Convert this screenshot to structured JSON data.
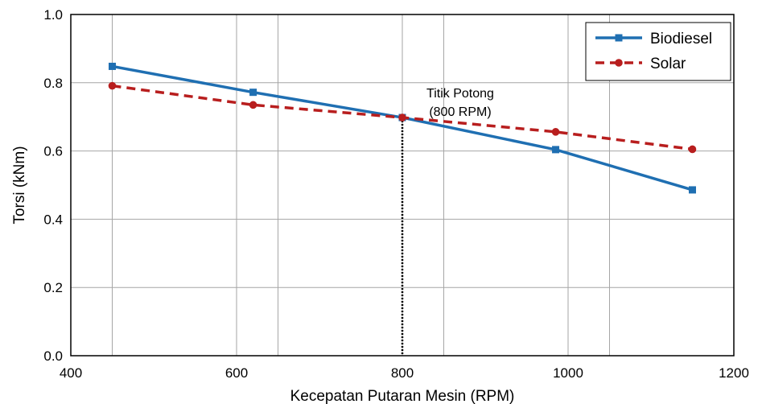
{
  "chart_data": {
    "type": "line",
    "title": "",
    "xlabel": "Kecepatan Putaran Mesin (RPM)",
    "ylabel": "Torsi (kNm)",
    "xlim": [
      400,
      1200
    ],
    "ylim": [
      0.0,
      1.0
    ],
    "xticks": [
      400,
      600,
      800,
      1000,
      1200
    ],
    "xtick_labels": [
      "400",
      "600",
      "800",
      "1000",
      "1200"
    ],
    "yticks": [
      0.0,
      0.2,
      0.4,
      0.6,
      0.8,
      1.0
    ],
    "ytick_labels": [
      "0.0",
      "0.2",
      "0.4",
      "0.6",
      "0.8",
      "1.0"
    ],
    "grid": true,
    "legend_position": "top-right",
    "series": [
      {
        "name": "Biodiesel",
        "color": "#1f6fb2",
        "line_style": "solid",
        "marker": "square",
        "x": [
          450,
          620,
          800,
          985,
          1150
        ],
        "y": [
          0.848,
          0.772,
          0.698,
          0.604,
          0.486
        ]
      },
      {
        "name": "Solar",
        "color": "#b81e1e",
        "line_style": "dashed",
        "marker": "circle",
        "x": [
          450,
          620,
          800,
          985,
          1150
        ],
        "y": [
          0.791,
          0.735,
          0.698,
          0.656,
          0.605
        ]
      }
    ],
    "annotation": {
      "lines": [
        "Titik Potong",
        "(800 RPM)"
      ],
      "x": 800,
      "y": 0.698,
      "vertical_line_style": "dotted"
    }
  }
}
